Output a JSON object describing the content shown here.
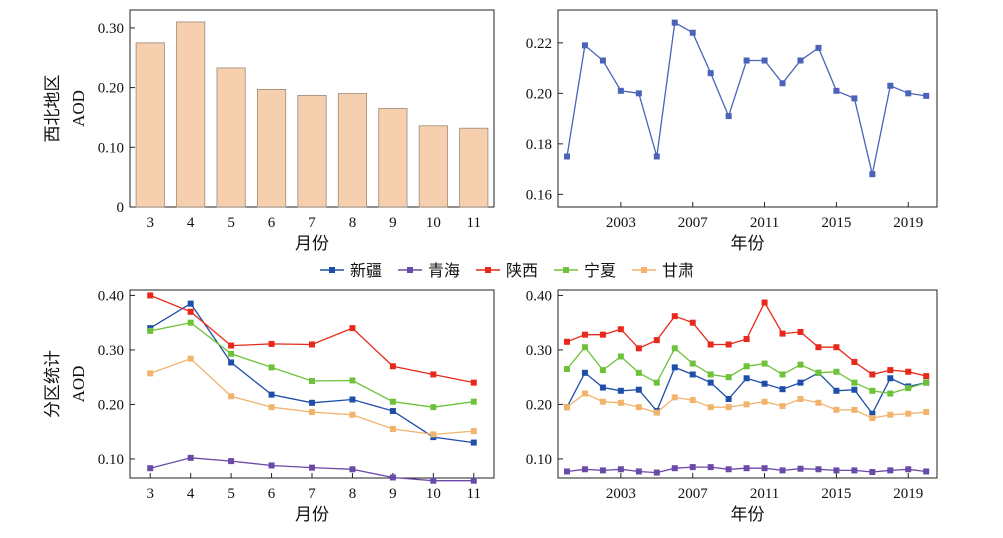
{
  "legend": {
    "items": [
      {
        "label": "新疆",
        "color": "#1f4ea8"
      },
      {
        "label": "青海",
        "color": "#6a4aa8"
      },
      {
        "label": "陕西",
        "color": "#e8281a"
      },
      {
        "label": "宁夏",
        "color": "#6ec23a"
      },
      {
        "label": "甘肃",
        "color": "#f2b36d"
      }
    ]
  },
  "chart_data": [
    {
      "type": "bar",
      "categories": [
        "3",
        "4",
        "5",
        "6",
        "7",
        "8",
        "9",
        "10",
        "11"
      ],
      "values": [
        0.275,
        0.31,
        0.233,
        0.197,
        0.187,
        0.19,
        0.165,
        0.136,
        0.132
      ],
      "xlabel": "月份",
      "ylabel_region": "西北地区",
      "ylabel": "AOD",
      "ylim": [
        0,
        0.33
      ],
      "yticks": [
        "0",
        "0.10",
        "0.20",
        "0.30"
      ],
      "bar_color": "#f5cfae",
      "grid": false
    },
    {
      "type": "line",
      "x": [
        2000,
        2001,
        2002,
        2003,
        2004,
        2005,
        2006,
        2007,
        2008,
        2009,
        2010,
        2011,
        2012,
        2013,
        2014,
        2015,
        2016,
        2017,
        2018,
        2019,
        2020
      ],
      "values": [
        0.175,
        0.219,
        0.213,
        0.201,
        0.2,
        0.175,
        0.228,
        0.224,
        0.208,
        0.191,
        0.213,
        0.213,
        0.204,
        0.213,
        0.218,
        0.201,
        0.198,
        0.168,
        0.203,
        0.2,
        0.199
      ],
      "xlabel": "年份",
      "xticks": [
        "2003",
        "2007",
        "2011",
        "2015",
        "2019"
      ],
      "ylim": [
        0.155,
        0.233
      ],
      "yticks": [
        "0.16",
        "0.18",
        "0.20",
        "0.22"
      ],
      "color": "#4a63b8",
      "grid": false
    },
    {
      "type": "line",
      "categories": [
        "3",
        "4",
        "5",
        "6",
        "7",
        "8",
        "9",
        "10",
        "11"
      ],
      "xlabel": "月份",
      "ylabel_region": "分区统计",
      "ylabel": "AOD",
      "ylim": [
        0.065,
        0.41
      ],
      "yticks": [
        "0.10",
        "0.20",
        "0.30",
        "0.40"
      ],
      "series": [
        {
          "name": "新疆",
          "color": "#1f4ea8",
          "values": [
            0.34,
            0.385,
            0.277,
            0.218,
            0.203,
            0.209,
            0.188,
            0.14,
            0.13
          ]
        },
        {
          "name": "青海",
          "color": "#6a4aa8",
          "values": [
            0.083,
            0.102,
            0.096,
            0.088,
            0.084,
            0.081,
            0.066,
            0.06,
            0.06
          ]
        },
        {
          "name": "陕西",
          "color": "#e8281a",
          "values": [
            0.4,
            0.37,
            0.308,
            0.311,
            0.31,
            0.34,
            0.27,
            0.255,
            0.24
          ]
        },
        {
          "name": "宁夏",
          "color": "#6ec23a",
          "values": [
            0.335,
            0.35,
            0.293,
            0.268,
            0.243,
            0.244,
            0.205,
            0.195,
            0.205
          ]
        },
        {
          "name": "甘肃",
          "color": "#f2b36d",
          "values": [
            0.257,
            0.284,
            0.215,
            0.195,
            0.186,
            0.181,
            0.155,
            0.145,
            0.151
          ]
        }
      ],
      "grid": false
    },
    {
      "type": "line",
      "x": [
        2000,
        2001,
        2002,
        2003,
        2004,
        2005,
        2006,
        2007,
        2008,
        2009,
        2010,
        2011,
        2012,
        2013,
        2014,
        2015,
        2016,
        2017,
        2018,
        2019,
        2020
      ],
      "xlabel": "年份",
      "xticks": [
        "2003",
        "2007",
        "2011",
        "2015",
        "2019"
      ],
      "ylim": [
        0.065,
        0.41
      ],
      "yticks": [
        "0.10",
        "0.20",
        "0.30",
        "0.40"
      ],
      "series": [
        {
          "name": "新疆",
          "color": "#1f4ea8",
          "values": [
            0.195,
            0.258,
            0.231,
            0.225,
            0.227,
            0.188,
            0.268,
            0.255,
            0.24,
            0.21,
            0.248,
            0.238,
            0.228,
            0.24,
            0.258,
            0.225,
            0.227,
            0.183,
            0.248,
            0.233,
            0.24
          ]
        },
        {
          "name": "青海",
          "color": "#6a4aa8",
          "values": [
            0.077,
            0.081,
            0.079,
            0.081,
            0.077,
            0.075,
            0.083,
            0.085,
            0.085,
            0.081,
            0.083,
            0.083,
            0.079,
            0.082,
            0.081,
            0.079,
            0.079,
            0.076,
            0.079,
            0.081,
            0.077
          ]
        },
        {
          "name": "陕西",
          "color": "#e8281a",
          "values": [
            0.315,
            0.328,
            0.328,
            0.338,
            0.303,
            0.318,
            0.362,
            0.35,
            0.31,
            0.31,
            0.32,
            0.387,
            0.33,
            0.333,
            0.305,
            0.305,
            0.278,
            0.255,
            0.263,
            0.26,
            0.252
          ]
        },
        {
          "name": "宁夏",
          "color": "#6ec23a",
          "values": [
            0.265,
            0.305,
            0.263,
            0.288,
            0.258,
            0.24,
            0.303,
            0.275,
            0.255,
            0.25,
            0.27,
            0.275,
            0.255,
            0.273,
            0.258,
            0.26,
            0.24,
            0.225,
            0.22,
            0.23,
            0.24
          ]
        },
        {
          "name": "甘肃",
          "color": "#f2b36d",
          "values": [
            0.195,
            0.22,
            0.205,
            0.203,
            0.195,
            0.185,
            0.213,
            0.208,
            0.195,
            0.195,
            0.2,
            0.205,
            0.197,
            0.21,
            0.203,
            0.19,
            0.19,
            0.175,
            0.181,
            0.183,
            0.186
          ]
        }
      ],
      "grid": false
    }
  ]
}
